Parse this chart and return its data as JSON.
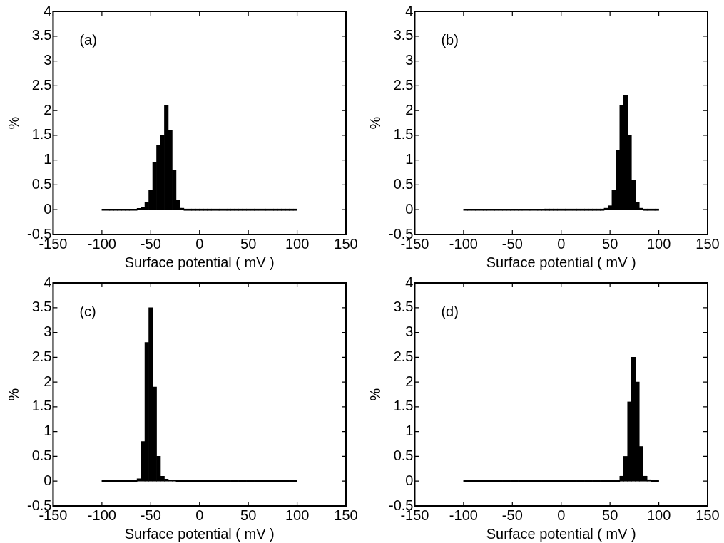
{
  "chart_data": [
    {
      "type": "histogram",
      "xlabel": "Surface potential ( mV )",
      "ylabel": "%",
      "annotations": [
        "(a)"
      ],
      "color": "#000000",
      "grid": false,
      "legend": false,
      "bins": [
        -100,
        -96,
        -92,
        -88,
        -84,
        -80,
        -76,
        -72,
        -68,
        -64,
        -60,
        -56,
        -52,
        -48,
        -44,
        -40,
        -36,
        -32,
        -28,
        -24,
        -20,
        -16,
        -12,
        -8,
        -4,
        0,
        4,
        8,
        12,
        16,
        20,
        24,
        28,
        32,
        36,
        40,
        44,
        48,
        52,
        56,
        60,
        64,
        68,
        72,
        76,
        80,
        84,
        88,
        92,
        96,
        100
      ],
      "values": [
        0,
        0,
        0,
        0,
        0,
        0,
        0,
        0,
        0,
        0.02,
        0.05,
        0.15,
        0.4,
        0.95,
        1.3,
        1.5,
        2.1,
        1.6,
        0.8,
        0.2,
        0.03,
        0,
        0,
        0,
        0,
        0,
        0,
        0,
        0,
        0,
        0,
        0,
        0,
        0,
        0,
        0,
        0,
        0,
        0,
        0,
        0,
        0,
        0,
        0,
        0,
        0,
        0,
        0,
        0,
        0
      ],
      "xlim": [
        -150,
        150
      ],
      "xticks": [
        -150,
        -100,
        -50,
        0,
        50,
        100,
        150
      ],
      "ylim": [
        -0.5,
        4
      ],
      "yticks": [
        -0.5,
        0,
        0.5,
        1,
        1.5,
        2,
        2.5,
        3,
        3.5,
        4
      ]
    },
    {
      "type": "histogram",
      "xlabel": "Surface potential ( mV )",
      "ylabel": "%",
      "annotations": [
        "(b)"
      ],
      "color": "#000000",
      "grid": false,
      "legend": false,
      "bins": [
        -100,
        -96,
        -92,
        -88,
        -84,
        -80,
        -76,
        -72,
        -68,
        -64,
        -60,
        -56,
        -52,
        -48,
        -44,
        -40,
        -36,
        -32,
        -28,
        -24,
        -20,
        -16,
        -12,
        -8,
        -4,
        0,
        4,
        8,
        12,
        16,
        20,
        24,
        28,
        32,
        36,
        40,
        44,
        48,
        52,
        56,
        60,
        64,
        68,
        72,
        76,
        80,
        84,
        88,
        92,
        96,
        100
      ],
      "values": [
        0,
        0,
        0,
        0,
        0,
        0,
        0,
        0,
        0,
        0,
        0,
        0,
        0,
        0,
        0,
        0,
        0,
        0,
        0,
        0,
        0,
        0,
        0,
        0,
        0,
        0,
        0,
        0,
        0,
        0,
        0,
        0,
        0,
        0,
        0,
        0,
        0.03,
        0.08,
        0.4,
        1.2,
        2.1,
        2.3,
        1.5,
        0.6,
        0.15,
        0.03,
        0,
        0,
        0,
        0
      ],
      "xlim": [
        -150,
        150
      ],
      "xticks": [
        -150,
        -100,
        -50,
        0,
        50,
        100,
        150
      ],
      "ylim": [
        -0.5,
        4
      ],
      "yticks": [
        -0.5,
        0,
        0.5,
        1,
        1.5,
        2,
        2.5,
        3,
        3.5,
        4
      ]
    },
    {
      "type": "histogram",
      "xlabel": "Surface potential ( mV )",
      "ylabel": "%",
      "annotations": [
        "(c)"
      ],
      "color": "#000000",
      "grid": false,
      "legend": false,
      "bins": [
        -100,
        -96,
        -92,
        -88,
        -84,
        -80,
        -76,
        -72,
        -68,
        -64,
        -60,
        -56,
        -52,
        -48,
        -44,
        -40,
        -36,
        -32,
        -28,
        -24,
        -20,
        -16,
        -12,
        -8,
        -4,
        0,
        4,
        8,
        12,
        16,
        20,
        24,
        28,
        32,
        36,
        40,
        44,
        48,
        52,
        56,
        60,
        64,
        68,
        72,
        76,
        80,
        84,
        88,
        92,
        96,
        100
      ],
      "values": [
        0,
        0,
        0,
        0,
        0,
        0,
        0,
        0,
        0,
        0.05,
        0.8,
        2.8,
        3.5,
        1.9,
        0.5,
        0.1,
        0.04,
        0.02,
        0.02,
        0,
        0,
        0,
        0,
        0,
        0,
        0,
        0,
        0,
        0,
        0,
        0,
        0,
        0,
        0,
        0,
        0,
        0,
        0,
        0,
        0,
        0,
        0,
        0,
        0,
        0,
        0,
        0,
        0,
        0,
        0
      ],
      "xlim": [
        -150,
        150
      ],
      "xticks": [
        -150,
        -100,
        -50,
        0,
        50,
        100,
        150
      ],
      "ylim": [
        -0.5,
        4
      ],
      "yticks": [
        -0.5,
        0,
        0.5,
        1,
        1.5,
        2,
        2.5,
        3,
        3.5,
        4
      ]
    },
    {
      "type": "histogram",
      "xlabel": "Surface potential ( mV )",
      "ylabel": "%",
      "annotations": [
        "(d)"
      ],
      "color": "#000000",
      "grid": false,
      "legend": false,
      "bins": [
        -100,
        -96,
        -92,
        -88,
        -84,
        -80,
        -76,
        -72,
        -68,
        -64,
        -60,
        -56,
        -52,
        -48,
        -44,
        -40,
        -36,
        -32,
        -28,
        -24,
        -20,
        -16,
        -12,
        -8,
        -4,
        0,
        4,
        8,
        12,
        16,
        20,
        24,
        28,
        32,
        36,
        40,
        44,
        48,
        52,
        56,
        60,
        64,
        68,
        72,
        76,
        80,
        84,
        88,
        92,
        96,
        100
      ],
      "values": [
        0,
        0,
        0,
        0,
        0,
        0,
        0,
        0,
        0,
        0,
        0,
        0,
        0,
        0,
        0,
        0,
        0,
        0,
        0,
        0,
        0,
        0,
        0,
        0,
        0,
        0,
        0,
        0,
        0,
        0,
        0,
        0,
        0,
        0,
        0,
        0,
        0,
        0,
        0,
        0,
        0.1,
        0.5,
        1.6,
        2.5,
        2.0,
        0.7,
        0.1,
        0.02,
        0,
        0
      ],
      "xlim": [
        -150,
        150
      ],
      "xticks": [
        -150,
        -100,
        -50,
        0,
        50,
        100,
        150
      ],
      "ylim": [
        -0.5,
        4
      ],
      "yticks": [
        -0.5,
        0,
        0.5,
        1,
        1.5,
        2,
        2.5,
        3,
        3.5,
        4
      ]
    }
  ]
}
